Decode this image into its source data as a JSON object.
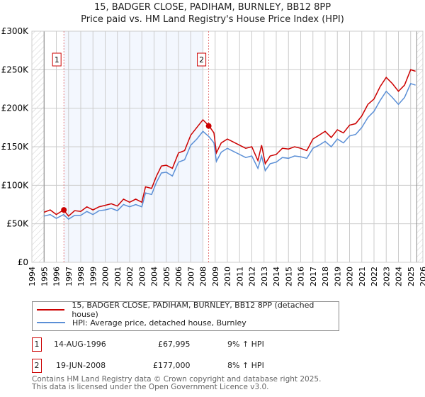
{
  "chart_data": {
    "type": "line",
    "title": "15, BADGER CLOSE, PADIHAM, BURNLEY, BB12 8PP",
    "subtitle": "Price paid vs. HM Land Registry's House Price Index (HPI)",
    "xlim": [
      1994,
      2026
    ],
    "ylim": [
      0,
      300000
    ],
    "yticks": [
      0,
      50000,
      100000,
      150000,
      200000,
      250000,
      300000
    ],
    "ytick_labels": [
      "£0",
      "£50K",
      "£100K",
      "£150K",
      "£200K",
      "£250K",
      "£300K"
    ],
    "xticks": [
      1994,
      1995,
      1996,
      1997,
      1998,
      1999,
      2000,
      2001,
      2002,
      2003,
      2004,
      2005,
      2006,
      2007,
      2008,
      2009,
      2010,
      2011,
      2012,
      2013,
      2014,
      2015,
      2016,
      2017,
      2018,
      2019,
      2020,
      2021,
      2022,
      2023,
      2024,
      2025,
      2026
    ],
    "grid": true,
    "legend_placement": "below",
    "series": [
      {
        "name": "15, BADGER CLOSE, PADIHAM, BURNLEY, BB12 8PP (detached house)",
        "color": "#cc0000",
        "x": [
          1995,
          1995.5,
          1996,
          1996.6,
          1997,
          1997.5,
          1998,
          1998.5,
          1999,
          1999.5,
          2000,
          2000.5,
          2001,
          2001.5,
          2002,
          2002.5,
          2003,
          2003.3,
          2003.8,
          2004.2,
          2004.6,
          2005,
          2005.5,
          2006,
          2006.5,
          2007,
          2007.5,
          2008,
          2008.5,
          2008.9,
          2009.1,
          2009.5,
          2010,
          2010.5,
          2011,
          2011.5,
          2012,
          2012.5,
          2012.8,
          2013.1,
          2013.5,
          2014,
          2014.5,
          2015,
          2015.5,
          2016,
          2016.5,
          2017,
          2017.5,
          2018,
          2018.5,
          2019,
          2019.5,
          2020,
          2020.5,
          2021,
          2021.5,
          2022,
          2022.5,
          2023,
          2023.5,
          2024,
          2024.5,
          2025,
          2025.4
        ],
        "values": [
          65000,
          68000,
          62000,
          68000,
          60000,
          67000,
          66000,
          72000,
          68000,
          72000,
          74000,
          76000,
          73000,
          82000,
          78000,
          82000,
          78000,
          98000,
          96000,
          112000,
          125000,
          126000,
          122000,
          142000,
          145000,
          165000,
          175000,
          185000,
          177000,
          168000,
          142000,
          155000,
          160000,
          156000,
          152000,
          148000,
          150000,
          132000,
          152000,
          128000,
          138000,
          140000,
          148000,
          147000,
          150000,
          148000,
          145000,
          160000,
          165000,
          170000,
          162000,
          172000,
          168000,
          178000,
          180000,
          190000,
          205000,
          212000,
          228000,
          240000,
          232000,
          222000,
          230000,
          250000,
          248000
        ]
      },
      {
        "name": "HPI: Average price, detached house, Burnley",
        "color": "#5b8fd6",
        "x": [
          1995,
          1995.5,
          1996,
          1996.6,
          1997,
          1997.5,
          1998,
          1998.5,
          1999,
          1999.5,
          2000,
          2000.5,
          2001,
          2001.5,
          2002,
          2002.5,
          2003,
          2003.3,
          2003.8,
          2004.2,
          2004.6,
          2005,
          2005.5,
          2006,
          2006.5,
          2007,
          2007.5,
          2008,
          2008.5,
          2008.9,
          2009.1,
          2009.5,
          2010,
          2010.5,
          2011,
          2011.5,
          2012,
          2012.5,
          2012.8,
          2013.1,
          2013.5,
          2014,
          2014.5,
          2015,
          2015.5,
          2016,
          2016.5,
          2017,
          2017.5,
          2018,
          2018.5,
          2019,
          2019.5,
          2020,
          2020.5,
          2021,
          2021.5,
          2022,
          2022.5,
          2023,
          2023.5,
          2024,
          2024.5,
          2025,
          2025.4
        ],
        "values": [
          60000,
          62000,
          57000,
          62000,
          56000,
          61000,
          61000,
          66000,
          62000,
          67000,
          68000,
          70000,
          67000,
          75000,
          72000,
          75000,
          72000,
          90000,
          88000,
          104000,
          116000,
          117000,
          112000,
          130000,
          133000,
          152000,
          160000,
          170000,
          163000,
          155000,
          131000,
          143000,
          148000,
          144000,
          140000,
          136000,
          138000,
          122000,
          138000,
          119000,
          128000,
          130000,
          136000,
          135000,
          138000,
          137000,
          135000,
          148000,
          152000,
          157000,
          150000,
          160000,
          155000,
          164000,
          166000,
          175000,
          188000,
          196000,
          210000,
          222000,
          214000,
          205000,
          214000,
          232000,
          230000
        ]
      }
    ],
    "shaded_range": [
      1996.62,
      2008.0
    ],
    "hatched_ranges": [
      [
        1994,
        1995
      ],
      [
        2025.5,
        2026
      ]
    ],
    "sales": [
      {
        "label": "1",
        "x": 1996.62,
        "value": 67995
      },
      {
        "label": "2",
        "x": 2008.47,
        "value": 177000
      }
    ]
  },
  "legend": {
    "red": "15, BADGER CLOSE, PADIHAM, BURNLEY, BB12 8PP (detached house)",
    "blue": "HPI: Average price, detached house, Burnley"
  },
  "transactions": [
    {
      "num": "1",
      "date": "14-AUG-1996",
      "price": "£67,995",
      "hpi": "9% ↑ HPI"
    },
    {
      "num": "2",
      "date": "19-JUN-2008",
      "price": "£177,000",
      "hpi": "8% ↑ HPI"
    }
  ],
  "footer": {
    "line1": "Contains HM Land Registry data © Crown copyright and database right 2025.",
    "line2": "This data is licensed under the Open Government Licence v3.0."
  }
}
